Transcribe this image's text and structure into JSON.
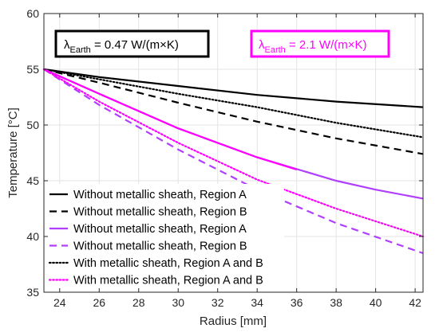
{
  "chart_data": {
    "type": "line",
    "xlabel": "Radius [mm]",
    "ylabel": "Temperature [°C]",
    "xlim": [
      23.2,
      42.4
    ],
    "ylim": [
      35,
      60
    ],
    "xticks": [
      24,
      26,
      28,
      30,
      32,
      34,
      36,
      38,
      40,
      42
    ],
    "yticks": [
      35,
      40,
      45,
      50,
      55,
      60
    ],
    "grid": true,
    "legend_position": "bottom-left",
    "annotations": [
      {
        "main": "λ",
        "sub": "Earth",
        "rest": " = 0.47 W/(m×K)",
        "color": "#000000"
      },
      {
        "main": "λ",
        "sub": "Earth",
        "rest": " = 2.1 W/(m×K)",
        "color": "#ff00ff"
      }
    ],
    "series": [
      {
        "name": "Without metallic sheath, Region A",
        "color": "#000000",
        "dash": "solid",
        "x": [
          23.2,
          26,
          30,
          34,
          38,
          42.4
        ],
        "y": [
          55.0,
          54.3,
          53.5,
          52.7,
          52.1,
          51.6
        ]
      },
      {
        "name": "Without metallic sheath, Region B",
        "color": "#000000",
        "dash": "dashed",
        "x": [
          23.2,
          26,
          30,
          34,
          38,
          42.4
        ],
        "y": [
          55.0,
          53.8,
          52.0,
          50.3,
          48.8,
          47.4
        ]
      },
      {
        "name": "Without metallic sheath, Region A",
        "color": "#b13fff",
        "dash": "solid",
        "x": [
          23.2,
          26,
          30,
          34,
          38,
          40,
          42.4
        ],
        "y": [
          55.0,
          52.8,
          49.7,
          47.1,
          45.0,
          44.2,
          43.4
        ]
      },
      {
        "name": "Without metallic sheath, Region B",
        "color": "#b13fff",
        "dash": "dashed",
        "x": [
          23.2,
          26,
          30,
          34,
          38,
          42.4
        ],
        "y": [
          55.0,
          51.8,
          47.8,
          44.2,
          41.2,
          38.5
        ]
      },
      {
        "name": "With metallic sheath, Region A and B",
        "color": "#000000",
        "dash": "dotted",
        "x": [
          23.2,
          26,
          30,
          34,
          38,
          42.4
        ],
        "y": [
          55.0,
          54.1,
          52.8,
          51.6,
          50.2,
          48.9
        ]
      },
      {
        "name": "With metallic sheath, Region A and B",
        "color": "#ff00ff",
        "dash": "dotted",
        "x": [
          23.2,
          26,
          30,
          34,
          38,
          42.4
        ],
        "y": [
          55.0,
          52.1,
          48.4,
          45.1,
          42.5,
          40.0
        ]
      }
    ],
    "magenta_overlay": {
      "color": "#ff00ff",
      "x": [
        23.2,
        26,
        30,
        34,
        36
      ],
      "y": [
        55.0,
        52.8,
        49.7,
        47.1,
        46.0
      ]
    }
  }
}
